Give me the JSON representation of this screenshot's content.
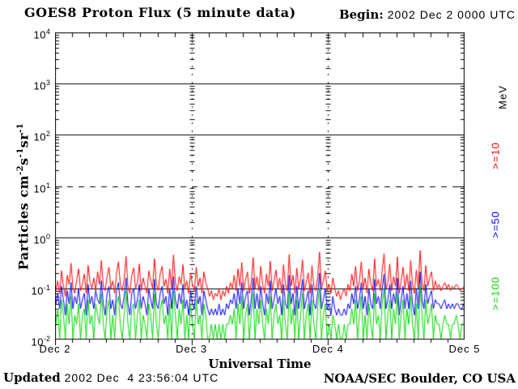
{
  "page": {
    "background": "#ffffff"
  },
  "header": {
    "title": "GOES8 Proton Flux (5 minute data)",
    "begin_label": "Begin:",
    "begin_value": "2002 Dec 2 0000 UTC"
  },
  "footer": {
    "updated_label": "Updated",
    "updated_value": "2002 Dec  4 23:56:04 UTC",
    "credit": "NOAA/SEC Boulder, CO USA"
  },
  "legend": {
    "unit_label": "MeV",
    "unit_color": "#000000",
    "items": [
      {
        "label": ">=10",
        "color": "#ff0000"
      },
      {
        "label": ">=50",
        "color": "#0000f0"
      },
      {
        "label": ">=100",
        "color": "#00d800"
      }
    ]
  },
  "chart_data": {
    "type": "line",
    "title": "GOES8 Proton Flux (5 minute data)",
    "xlabel": "Universal Time",
    "ylabel_segments": [
      {
        "text": "Particles cm"
      },
      {
        "sup": "-2"
      },
      {
        "text": "s"
      },
      {
        "sup": "-1"
      },
      {
        "text": "sr"
      },
      {
        "sup": "-1"
      }
    ],
    "x_tick_labels": [
      "Dec 2",
      "Dec 3",
      "Dec 4",
      "Dec 5"
    ],
    "y_tick_exponents": [
      "4",
      "3",
      "2",
      "1",
      "0",
      "-1",
      "-2"
    ],
    "ylim": [
      0.01,
      10000
    ],
    "x_range": {
      "start": "2002 Dec 2 0000 UTC",
      "days": 3,
      "minor_tick_hours": 3
    },
    "grid": {
      "solid_y": [
        1000,
        100,
        1,
        0.1
      ],
      "dashed_y": [
        10
      ],
      "dashed_x_day_offsets": [
        1,
        2
      ]
    },
    "series": [
      {
        "name": ">=10 MeV",
        "color": "#ff0000",
        "values": [
          0.09,
          0.14,
          0.08,
          0.22,
          0.11,
          0.07,
          0.18,
          0.12,
          0.31,
          0.1,
          0.08,
          0.15,
          0.24,
          0.09,
          0.12,
          0.19,
          0.08,
          0.28,
          0.13,
          0.1,
          0.16,
          0.09,
          0.21,
          0.12,
          0.35,
          0.11,
          0.09,
          0.17,
          0.26,
          0.1,
          0.14,
          0.08,
          0.2,
          0.33,
          0.12,
          0.09,
          0.15,
          0.42,
          0.11,
          0.08,
          0.18,
          0.25,
          0.1,
          0.13,
          0.3,
          0.09,
          0.16,
          0.11,
          0.08,
          0.22,
          0.14,
          0.1,
          0.38,
          0.12,
          0.09,
          0.19,
          0.27,
          0.11,
          0.15,
          0.08,
          0.24,
          0.1,
          0.45,
          0.13,
          0.09,
          0.17,
          0.12,
          0.29,
          0.1,
          0.14,
          0.08,
          0.2,
          0.12,
          0.09,
          0.26,
          0.11,
          0.16,
          0.08,
          0.21,
          0.13,
          0.1,
          0.07,
          0.09,
          0.06,
          0.08,
          0.07,
          0.1,
          0.06,
          0.09,
          0.07,
          0.11,
          0.08,
          0.13,
          0.1,
          0.18,
          0.09,
          0.24,
          0.11,
          0.32,
          0.09,
          0.15,
          0.21,
          0.08,
          0.13,
          0.4,
          0.1,
          0.17,
          0.09,
          0.27,
          0.12,
          0.08,
          0.19,
          0.11,
          0.34,
          0.09,
          0.14,
          0.23,
          0.1,
          0.16,
          0.08,
          0.29,
          0.12,
          0.09,
          0.46,
          0.11,
          0.18,
          0.08,
          0.25,
          0.1,
          0.15,
          0.36,
          0.09,
          0.13,
          0.2,
          0.08,
          0.28,
          0.11,
          0.09,
          0.17,
          0.51,
          0.1,
          0.14,
          0.22,
          0.09,
          0.12,
          0.08,
          0.16,
          0.1,
          0.07,
          0.09,
          0.06,
          0.08,
          0.1,
          0.07,
          0.12,
          0.09,
          0.19,
          0.11,
          0.27,
          0.09,
          0.14,
          0.33,
          0.1,
          0.16,
          0.08,
          0.24,
          0.12,
          0.09,
          0.38,
          0.11,
          0.15,
          0.09,
          0.22,
          0.48,
          0.1,
          0.13,
          0.3,
          0.09,
          0.17,
          0.11,
          0.41,
          0.08,
          0.14,
          0.26,
          0.1,
          0.19,
          0.09,
          0.35,
          0.12,
          0.08,
          0.23,
          0.1,
          0.55,
          0.13,
          0.09,
          0.28,
          0.11,
          0.16,
          0.21,
          0.09,
          0.14,
          0.1,
          0.12,
          0.09,
          0.11,
          0.13,
          0.1,
          0.12,
          0.09,
          0.11,
          0.1,
          0.12,
          0.11,
          0.09,
          0.1,
          0.11
        ]
      },
      {
        "name": ">=50 MeV",
        "color": "#0000f0",
        "values": [
          0.05,
          0.08,
          0.04,
          0.11,
          0.06,
          0.03,
          0.09,
          0.05,
          0.13,
          0.04,
          0.07,
          0.05,
          0.1,
          0.04,
          0.06,
          0.08,
          0.03,
          0.12,
          0.05,
          0.07,
          0.04,
          0.09,
          0.06,
          0.05,
          0.14,
          0.05,
          0.03,
          0.08,
          0.11,
          0.04,
          0.06,
          0.03,
          0.09,
          0.13,
          0.05,
          0.04,
          0.07,
          0.16,
          0.05,
          0.03,
          0.08,
          0.1,
          0.04,
          0.06,
          0.12,
          0.04,
          0.07,
          0.05,
          0.03,
          0.1,
          0.06,
          0.04,
          0.15,
          0.05,
          0.04,
          0.08,
          0.11,
          0.05,
          0.07,
          0.03,
          0.1,
          0.04,
          0.17,
          0.06,
          0.04,
          0.08,
          0.05,
          0.12,
          0.04,
          0.06,
          0.03,
          0.09,
          0.05,
          0.04,
          0.11,
          0.05,
          0.07,
          0.03,
          0.09,
          0.06,
          0.04,
          0.03,
          0.04,
          0.03,
          0.04,
          0.03,
          0.05,
          0.03,
          0.04,
          0.03,
          0.05,
          0.04,
          0.06,
          0.05,
          0.08,
          0.04,
          0.1,
          0.05,
          0.13,
          0.04,
          0.07,
          0.09,
          0.03,
          0.06,
          0.16,
          0.04,
          0.08,
          0.04,
          0.11,
          0.05,
          0.03,
          0.08,
          0.05,
          0.14,
          0.04,
          0.06,
          0.1,
          0.05,
          0.07,
          0.03,
          0.12,
          0.05,
          0.04,
          0.18,
          0.05,
          0.08,
          0.03,
          0.11,
          0.04,
          0.07,
          0.15,
          0.04,
          0.06,
          0.09,
          0.03,
          0.12,
          0.05,
          0.04,
          0.08,
          0.2,
          0.04,
          0.06,
          0.1,
          0.04,
          0.05,
          0.03,
          0.07,
          0.04,
          0.03,
          0.04,
          0.03,
          0.03,
          0.04,
          0.03,
          0.05,
          0.04,
          0.08,
          0.05,
          0.11,
          0.04,
          0.06,
          0.13,
          0.04,
          0.07,
          0.03,
          0.1,
          0.05,
          0.04,
          0.15,
          0.05,
          0.07,
          0.04,
          0.1,
          0.19,
          0.04,
          0.06,
          0.12,
          0.04,
          0.08,
          0.05,
          0.16,
          0.03,
          0.06,
          0.11,
          0.04,
          0.08,
          0.04,
          0.14,
          0.05,
          0.03,
          0.1,
          0.04,
          0.21,
          0.06,
          0.04,
          0.12,
          0.05,
          0.07,
          0.09,
          0.04,
          0.06,
          0.05,
          0.05,
          0.04,
          0.05,
          0.06,
          0.04,
          0.05,
          0.04,
          0.05,
          0.04,
          0.05,
          0.05,
          0.04,
          0.04,
          0.05
        ]
      },
      {
        "name": ">=100 MeV",
        "color": "#00d800",
        "values": [
          0.02,
          0.04,
          0.01,
          0.06,
          0.03,
          0.01,
          0.05,
          0.02,
          0.07,
          0.01,
          0.03,
          0.02,
          0.05,
          0.01,
          0.03,
          0.04,
          0.01,
          0.06,
          0.02,
          0.03,
          0.01,
          0.05,
          0.03,
          0.02,
          0.08,
          0.02,
          0.01,
          0.04,
          0.06,
          0.01,
          0.03,
          0.01,
          0.05,
          0.07,
          0.02,
          0.01,
          0.03,
          0.09,
          0.02,
          0.01,
          0.04,
          0.05,
          0.01,
          0.03,
          0.06,
          0.01,
          0.03,
          0.02,
          0.01,
          0.05,
          0.03,
          0.01,
          0.08,
          0.02,
          0.01,
          0.04,
          0.06,
          0.02,
          0.03,
          0.01,
          0.05,
          0.01,
          0.09,
          0.03,
          0.01,
          0.04,
          0.02,
          0.06,
          0.01,
          0.03,
          0.01,
          0.05,
          0.02,
          0.01,
          0.06,
          0.02,
          0.03,
          0.01,
          0.05,
          0.03,
          0.01,
          0.01,
          0.02,
          0.01,
          0.02,
          0.01,
          0.02,
          0.01,
          0.02,
          0.01,
          0.02,
          0.02,
          0.03,
          0.02,
          0.04,
          0.01,
          0.05,
          0.02,
          0.07,
          0.01,
          0.03,
          0.05,
          0.01,
          0.03,
          0.08,
          0.01,
          0.04,
          0.02,
          0.06,
          0.02,
          0.01,
          0.04,
          0.02,
          0.07,
          0.01,
          0.03,
          0.05,
          0.02,
          0.03,
          0.01,
          0.06,
          0.02,
          0.01,
          0.09,
          0.02,
          0.04,
          0.01,
          0.06,
          0.01,
          0.03,
          0.08,
          0.01,
          0.03,
          0.05,
          0.01,
          0.06,
          0.02,
          0.01,
          0.04,
          0.1,
          0.01,
          0.03,
          0.05,
          0.01,
          0.02,
          0.01,
          0.03,
          0.02,
          0.01,
          0.02,
          0.01,
          0.01,
          0.02,
          0.01,
          0.02,
          0.02,
          0.04,
          0.02,
          0.06,
          0.01,
          0.03,
          0.07,
          0.01,
          0.03,
          0.01,
          0.05,
          0.02,
          0.01,
          0.08,
          0.02,
          0.03,
          0.01,
          0.05,
          0.1,
          0.01,
          0.03,
          0.06,
          0.01,
          0.04,
          0.02,
          0.08,
          0.01,
          0.03,
          0.06,
          0.01,
          0.04,
          0.02,
          0.07,
          0.02,
          0.01,
          0.05,
          0.01,
          0.11,
          0.03,
          0.01,
          0.06,
          0.02,
          0.03,
          0.05,
          0.01,
          0.03,
          0.02,
          0.02,
          0.01,
          0.02,
          0.03,
          0.02,
          0.02,
          0.01,
          0.02,
          0.02,
          0.03,
          0.02,
          0.01,
          0.02,
          0.02
        ]
      }
    ]
  }
}
